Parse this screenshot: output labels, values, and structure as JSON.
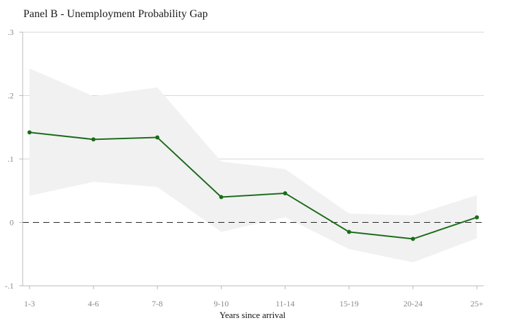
{
  "chart_data": {
    "type": "line",
    "title": "Panel B - Unemployment Probability Gap",
    "xlabel": "Years since arrival",
    "ylabel": "",
    "categories": [
      "1-3",
      "4-6",
      "7-8",
      "9-10",
      "11-14",
      "15-19",
      "20-24",
      "25+"
    ],
    "series": [
      {
        "values": [
          0.142,
          0.131,
          0.134,
          0.04,
          0.046,
          -0.015,
          -0.026,
          0.008
        ],
        "ci_upper": [
          0.243,
          0.199,
          0.213,
          0.096,
          0.084,
          0.014,
          0.011,
          0.043
        ],
        "ci_lower": [
          0.042,
          0.064,
          0.056,
          -0.015,
          0.008,
          -0.042,
          -0.063,
          -0.025
        ]
      }
    ],
    "ylim": [
      -0.1,
      0.3
    ],
    "yticks": [
      -0.1,
      0,
      0.1,
      0.2,
      0.3
    ],
    "ytick_labels": [
      "-.1",
      "0",
      ".1",
      ".2",
      ".3"
    ],
    "reference_line": 0,
    "grid": true,
    "colors": {
      "line": "#1a6b1a",
      "band": "#f1f1f1",
      "grid": "#d6d6d6",
      "axis": "#b8b8b8",
      "reference": "#222222"
    }
  }
}
